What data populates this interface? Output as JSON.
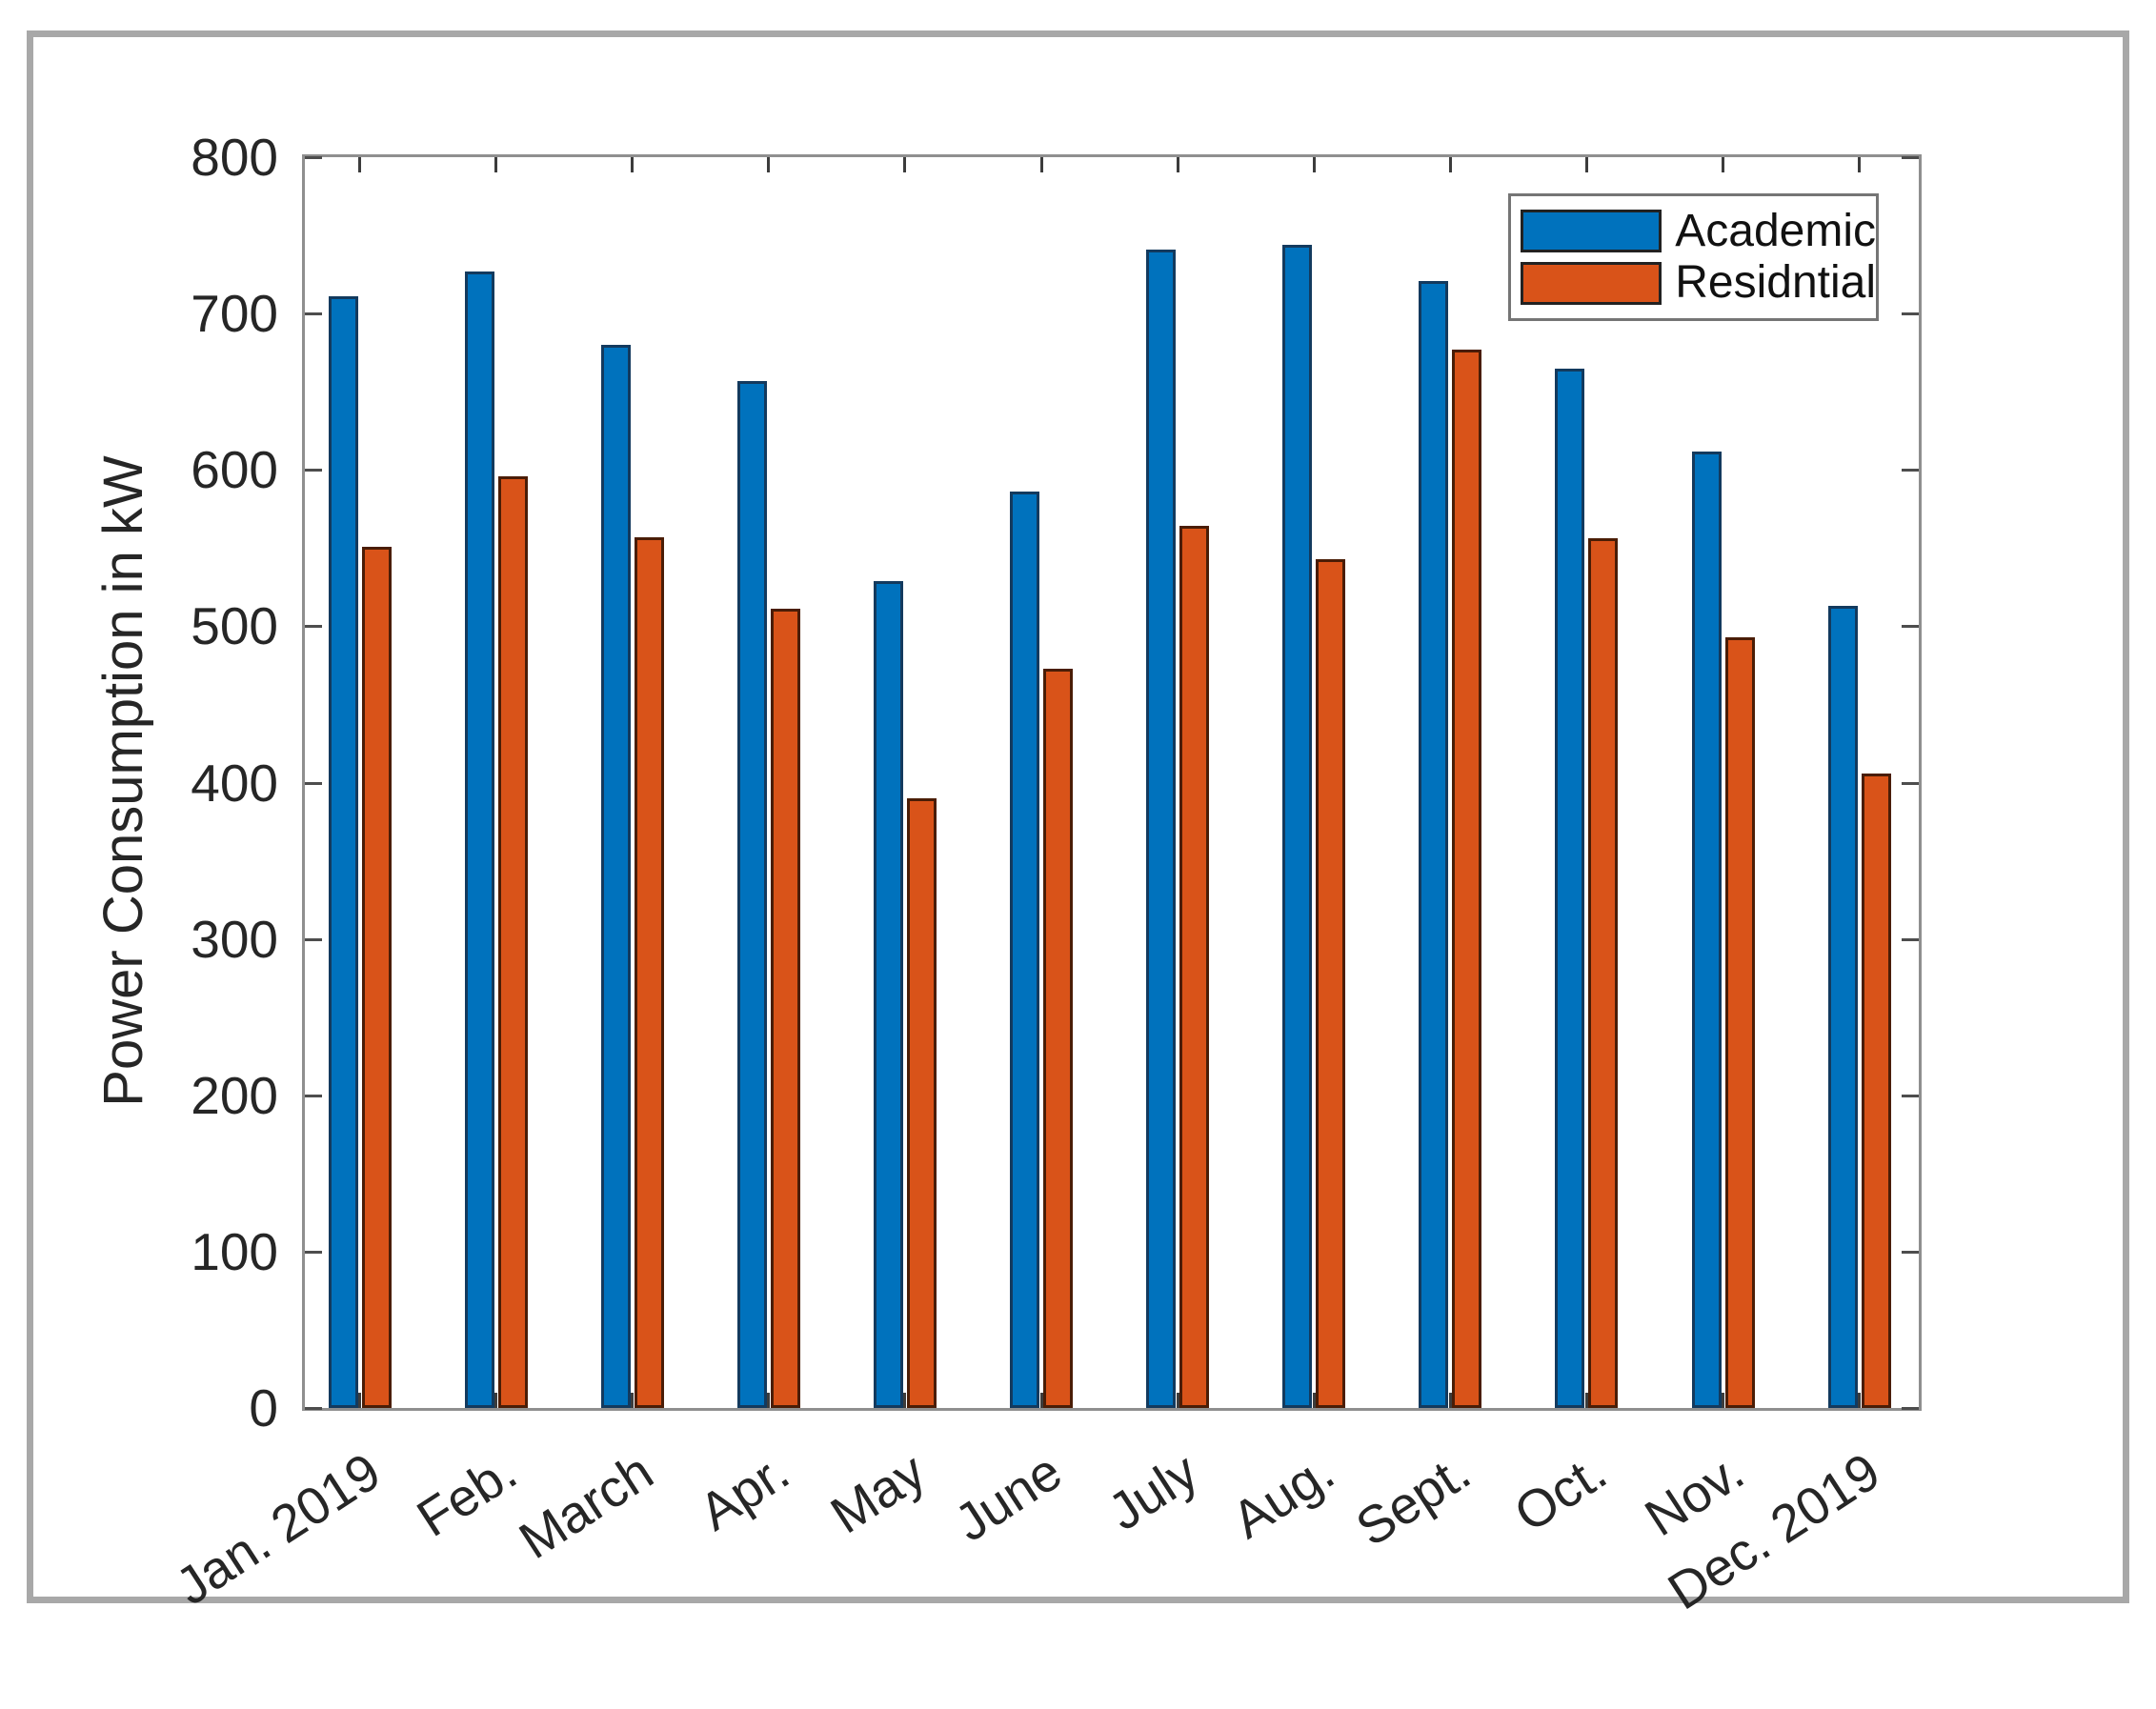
{
  "figure": {
    "frame_color": "#a8a8a8",
    "axis_color": "#8f8f8f",
    "tick_color": "#4d4d4d",
    "text_color": "#262626",
    "background": "#ffffff"
  },
  "legend": {
    "items": [
      {
        "label": "Academic",
        "color": "#0072BD"
      },
      {
        "label": "Residntial",
        "color": "#D95319"
      }
    ]
  },
  "chart_data": {
    "type": "bar",
    "title": "",
    "xlabel": "",
    "ylabel": "Power Consumption in kW",
    "categories": [
      "Jan. 2019",
      "Feb.",
      "March",
      "Apr.",
      "May",
      "June",
      "July",
      "Aug.",
      "Sept.",
      "Oct.",
      "Nov.",
      "Dec. 2019"
    ],
    "series": [
      {
        "name": "Academic",
        "color": "#0072BD",
        "edge_color": "#133a5e",
        "values": [
          711,
          727,
          680,
          657,
          529,
          586,
          741,
          744,
          721,
          665,
          612,
          513
        ]
      },
      {
        "name": "Residntial",
        "color": "#D95319",
        "edge_color": "#4a1d06",
        "values": [
          551,
          596,
          557,
          511,
          390,
          473,
          564,
          543,
          677,
          556,
          493,
          406
        ]
      }
    ],
    "ylim": [
      0,
      800
    ],
    "yticks": [
      0,
      100,
      200,
      300,
      400,
      500,
      600,
      700,
      800
    ],
    "grid": false,
    "legend_position": "upper right",
    "x_tick_label_rotation_deg": 33
  }
}
